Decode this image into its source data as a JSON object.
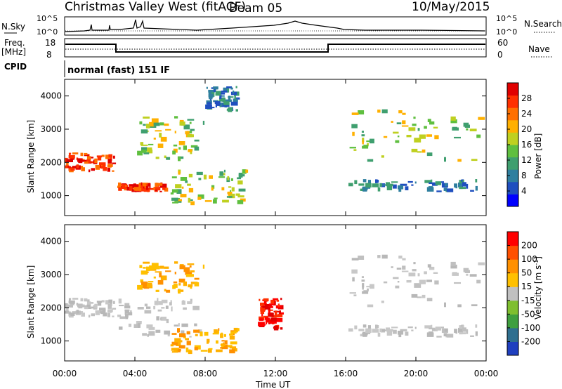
{
  "header": {
    "title": "Christmas Valley West (fitACF)",
    "beam": "Beam 05",
    "date": "10/May/2015"
  },
  "panels": {
    "nsky": {
      "label": "N.Sky",
      "ticks": [
        "10^5",
        "10^0"
      ],
      "right_ticks": [
        "10^5",
        "10^0"
      ],
      "right_label": "N.Search"
    },
    "freq": {
      "label_line1": "Freq.",
      "label_line2": "[MHz]",
      "ticks": [
        "18",
        "8"
      ],
      "right_ticks": [
        "60",
        "0"
      ],
      "right_label": "Nave"
    },
    "cpid": {
      "label": "CPID",
      "value": "normal (fast) 151 IF"
    }
  },
  "chart_data": [
    {
      "type": "heatmap",
      "panel": "power",
      "ylabel": "Slant Range [km]",
      "yticks": [
        "4000",
        "3000",
        "2000",
        "1000"
      ],
      "ylim": [
        400,
        4500
      ],
      "colorbar": {
        "label": "Power [dB]",
        "ticks": [
          "28",
          "24",
          "20",
          "16",
          "12",
          "8",
          "4"
        ],
        "colors": [
          "#0000ff",
          "#1f4fbf",
          "#2f7f9f",
          "#3f9f6f",
          "#5fbf3f",
          "#bfd020",
          "#ffb000",
          "#ff7000",
          "#ff3000",
          "#e00000"
        ]
      },
      "bands": [
        {
          "x": [
            0,
            3
          ],
          "y": [
            1700,
            2300
          ],
          "level": "high"
        },
        {
          "x": [
            3,
            6
          ],
          "y": [
            1100,
            1400
          ],
          "level": "high"
        },
        {
          "x": [
            4,
            8
          ],
          "y": [
            2000,
            3400
          ],
          "level": "mid"
        },
        {
          "x": [
            6,
            10.5
          ],
          "y": [
            700,
            1800
          ],
          "level": "mid"
        },
        {
          "x": [
            8,
            10
          ],
          "y": [
            3500,
            4300
          ],
          "level": "low"
        },
        {
          "x": [
            16,
            24
          ],
          "y": [
            2000,
            3600
          ],
          "level": "mid"
        },
        {
          "x": [
            16,
            24
          ],
          "y": [
            1100,
            1500
          ],
          "level": "low"
        }
      ]
    },
    {
      "type": "heatmap",
      "panel": "velocity",
      "ylabel": "Slant Range [km]",
      "yticks": [
        "4000",
        "3000",
        "2000",
        "1000"
      ],
      "ylim": [
        400,
        4500
      ],
      "xlabel": "Time UT",
      "xticks": [
        "00:00",
        "04:00",
        "08:00",
        "12:00",
        "16:00",
        "20:00",
        "00:00"
      ],
      "xlim": [
        0,
        24
      ],
      "colorbar": {
        "label": "Velocity [m s^-1]",
        "ticks": [
          "200",
          "100",
          "50",
          "15",
          "-15",
          "-50",
          "-100",
          "-200"
        ],
        "colors": [
          "#1f3fbf",
          "#2f6f8f",
          "#3f9f3f",
          "#7fbf2f",
          "#c0c0c0",
          "#ffc000",
          "#ff9000",
          "#ff5000",
          "#ff0000"
        ]
      },
      "bands": [
        {
          "x": [
            0,
            3
          ],
          "y": [
            1700,
            2300
          ],
          "level": "gray"
        },
        {
          "x": [
            3,
            8
          ],
          "y": [
            1100,
            2300
          ],
          "level": "gray"
        },
        {
          "x": [
            4,
            8
          ],
          "y": [
            2400,
            3400
          ],
          "level": "orange"
        },
        {
          "x": [
            6,
            10
          ],
          "y": [
            600,
            1400
          ],
          "level": "orange"
        },
        {
          "x": [
            11,
            12.5
          ],
          "y": [
            1300,
            2300
          ],
          "level": "red"
        },
        {
          "x": [
            16,
            24
          ],
          "y": [
            2000,
            3600
          ],
          "level": "gray"
        },
        {
          "x": [
            16,
            24
          ],
          "y": [
            1100,
            1500
          ],
          "level": "gray"
        }
      ]
    }
  ]
}
